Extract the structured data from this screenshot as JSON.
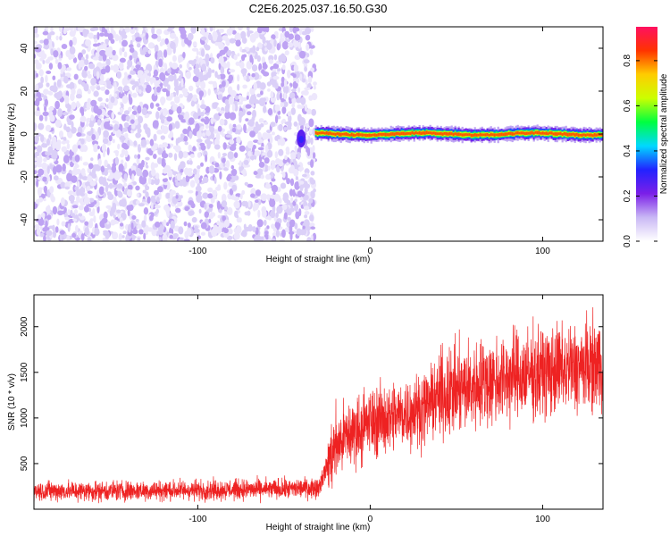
{
  "figure": {
    "title": "C2E6.2025.037.16.50.G30"
  },
  "chart_data": [
    {
      "type": "heatmap",
      "title": "C2E6.2025.037.16.50.G30",
      "xlabel": "Height of straight line (km)",
      "ylabel": "Frequency (Hz)",
      "xlim": [
        -195,
        135
      ],
      "ylim": [
        -50,
        50
      ],
      "xticks": [
        -100,
        0,
        100
      ],
      "yticks": [
        -40,
        -20,
        0,
        20,
        40
      ],
      "colorbar": {
        "label": "Normalized spectral amplitude",
        "range": [
          0,
          0.95
        ],
        "ticks": [
          0.0,
          0.2,
          0.4,
          0.6,
          0.8
        ],
        "tick_labels": [
          "0.0",
          "0.2",
          "0.4",
          "0.6",
          "0.8"
        ],
        "colormap": [
          "#ffffff",
          "#c9b8f5",
          "#7b1fe8",
          "#2222ff",
          "#00d8ff",
          "#00ff40",
          "#ccff00",
          "#ffcc00",
          "#ff3300",
          "#ff1060"
        ]
      },
      "regions": [
        {
          "name": "noise",
          "x_range": [
            -195,
            -32
          ],
          "freq_range": [
            -50,
            50
          ],
          "amplitude_range": [
            0.02,
            0.15
          ]
        },
        {
          "name": "signal",
          "x_range": [
            -32,
            135
          ],
          "center_freq": 0,
          "half_width_hz": 2,
          "peak_amplitude": 0.9
        }
      ]
    },
    {
      "type": "line",
      "xlabel": "Height of straight line (km)",
      "ylabel": "SNR (10 * v/v)",
      "xlim": [
        -195,
        135
      ],
      "ylim": [
        0,
        2350
      ],
      "xticks": [
        -100,
        0,
        100
      ],
      "yticks": [
        500,
        1000,
        1500,
        2000
      ],
      "color": "#ee2222",
      "x": [
        -195,
        -150,
        -100,
        -50,
        -30,
        -20,
        -10,
        0,
        10,
        20,
        30,
        40,
        50,
        60,
        80,
        100,
        120,
        135
      ],
      "y": [
        200,
        200,
        210,
        220,
        240,
        700,
        850,
        950,
        1000,
        1050,
        1100,
        1250,
        1300,
        1350,
        1450,
        1500,
        1550,
        1600
      ]
    }
  ]
}
